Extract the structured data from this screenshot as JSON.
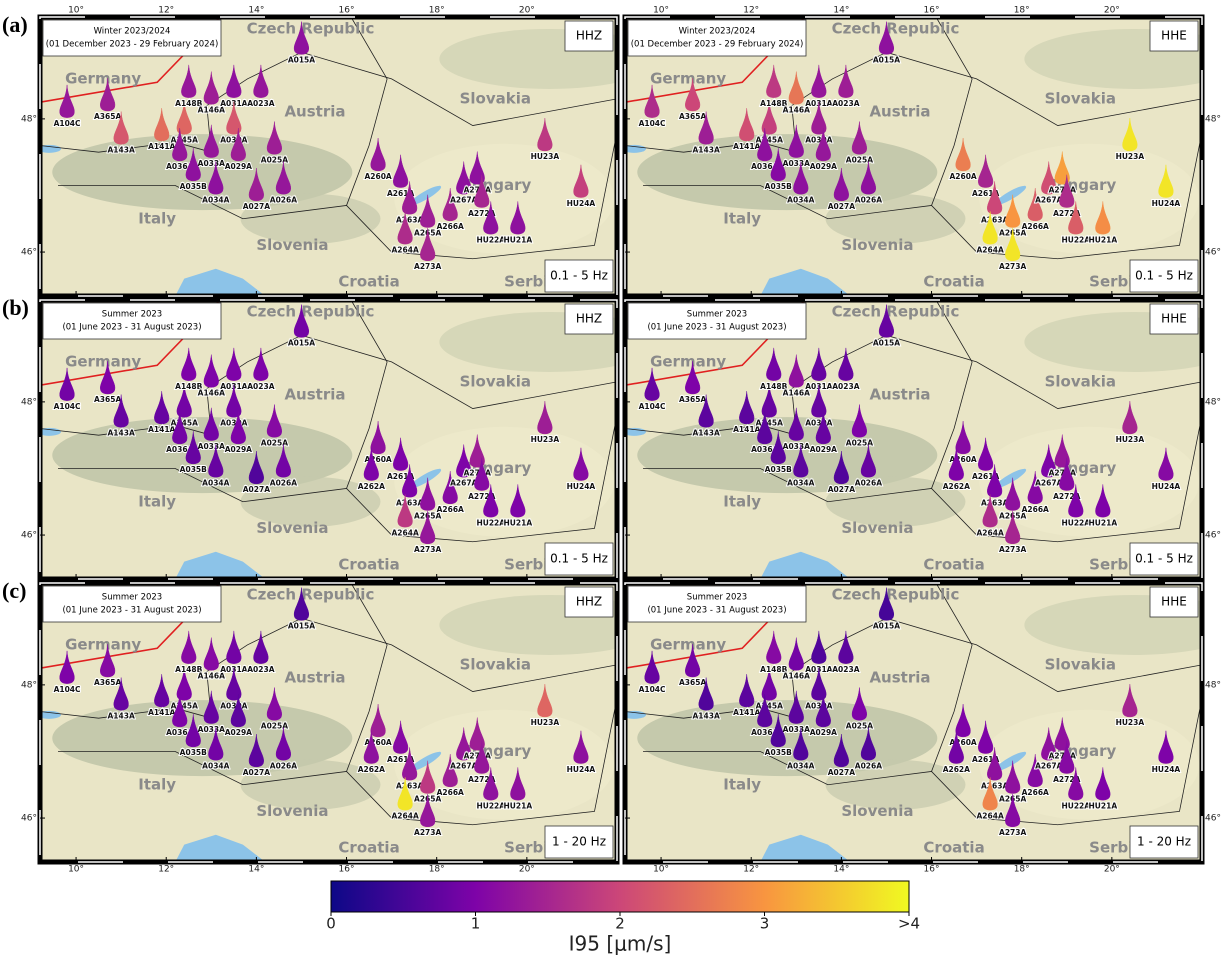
{
  "chart_data": {
    "type": "violin-map",
    "xlim": [
      9.2,
      22.0
    ],
    "ylim": [
      45.34,
      49.53
    ],
    "xticks": [
      {
        "value": 10,
        "label": "10°"
      },
      {
        "value": 12,
        "label": "12°"
      },
      {
        "value": 14,
        "label": "14°"
      },
      {
        "value": 16,
        "label": "16°"
      },
      {
        "value": 18,
        "label": "18°"
      },
      {
        "value": 20,
        "label": "20°"
      }
    ],
    "yticks": [
      {
        "value": 46,
        "label": "46°"
      },
      {
        "value": 48,
        "label": "48°"
      }
    ],
    "countries": [
      "Germany",
      "Czech Republic",
      "Austria",
      "Slovakia",
      "Hungary",
      "Italy",
      "Slovenia",
      "Croatia",
      "Serbia"
    ],
    "stations": [
      {
        "name": "A104C",
        "lon": 9.8,
        "lat": 48.0
      },
      {
        "name": "A365A",
        "lon": 10.7,
        "lat": 48.1
      },
      {
        "name": "A143A",
        "lon": 11.0,
        "lat": 47.6
      },
      {
        "name": "A141A",
        "lon": 11.9,
        "lat": 47.65
      },
      {
        "name": "A145A",
        "lon": 12.4,
        "lat": 47.75
      },
      {
        "name": "A148B",
        "lon": 12.5,
        "lat": 48.3
      },
      {
        "name": "A146A",
        "lon": 13.0,
        "lat": 48.2
      },
      {
        "name": "A031A",
        "lon": 13.5,
        "lat": 48.3
      },
      {
        "name": "A023A",
        "lon": 14.1,
        "lat": 48.3
      },
      {
        "name": "A030A",
        "lon": 13.5,
        "lat": 47.75
      },
      {
        "name": "A036A",
        "lon": 12.3,
        "lat": 47.35
      },
      {
        "name": "A033A",
        "lon": 13.0,
        "lat": 47.4
      },
      {
        "name": "A029A",
        "lon": 13.6,
        "lat": 47.35
      },
      {
        "name": "A025A",
        "lon": 14.4,
        "lat": 47.45
      },
      {
        "name": "A035B",
        "lon": 12.6,
        "lat": 47.05
      },
      {
        "name": "A034A",
        "lon": 13.1,
        "lat": 46.85
      },
      {
        "name": "A027A",
        "lon": 14.0,
        "lat": 46.75
      },
      {
        "name": "A026A",
        "lon": 14.6,
        "lat": 46.85
      },
      {
        "name": "A015A",
        "lon": 15.0,
        "lat": 48.95
      },
      {
        "name": "A260A",
        "lon": 16.7,
        "lat": 47.2
      },
      {
        "name": "A262A",
        "lon": 16.55,
        "lat": 46.8
      },
      {
        "name": "A261A",
        "lon": 17.2,
        "lat": 46.95
      },
      {
        "name": "A263A",
        "lon": 17.4,
        "lat": 46.55
      },
      {
        "name": "A264A",
        "lon": 17.3,
        "lat": 46.1
      },
      {
        "name": "A265A",
        "lon": 17.8,
        "lat": 46.35
      },
      {
        "name": "A273A",
        "lon": 17.8,
        "lat": 45.85
      },
      {
        "name": "A266A",
        "lon": 18.3,
        "lat": 46.45
      },
      {
        "name": "A267A",
        "lon": 18.6,
        "lat": 46.85
      },
      {
        "name": "A271A",
        "lon": 18.9,
        "lat": 47.0
      },
      {
        "name": "A272A",
        "lon": 19.0,
        "lat": 46.65
      },
      {
        "name": "HU22A",
        "lon": 19.2,
        "lat": 46.25
      },
      {
        "name": "HU21A",
        "lon": 19.8,
        "lat": 46.25
      },
      {
        "name": "HU23A",
        "lon": 20.4,
        "lat": 47.5
      },
      {
        "name": "HU24A",
        "lon": 21.2,
        "lat": 46.8
      }
    ],
    "panels": [
      {
        "label": "(a)",
        "title": "Winter 2023/2024",
        "period": "(01 December 2023 -  29 February 2024)",
        "component": "HHZ",
        "band": "0.1 - 5 Hz",
        "values": [
          1.3,
          1.4,
          2.2,
          2.5,
          2.4,
          1.3,
          1.4,
          1.2,
          1.3,
          2.2,
          1.3,
          1.3,
          1.4,
          1.4,
          1.2,
          1.2,
          1.4,
          1.3,
          1.2,
          1.3,
          null,
          1.2,
          1.4,
          1.6,
          1.4,
          1.5,
          1.5,
          1.2,
          1.2,
          1.5,
          1.2,
          1.2,
          1.8,
          1.9
        ]
      },
      {
        "title": "Winter 2023/2024",
        "period": "(01 December 2023 -  29 February 2024)",
        "component": "HHE",
        "band": "0.1 - 5 Hz",
        "values": [
          1.6,
          2.0,
          1.4,
          2.1,
          1.9,
          1.8,
          2.6,
          1.3,
          1.4,
          1.4,
          1.2,
          1.2,
          1.3,
          1.4,
          1.1,
          1.2,
          1.2,
          1.2,
          1.2,
          2.7,
          null,
          1.5,
          2.0,
          3.8,
          3.0,
          3.8,
          2.3,
          2.1,
          3.1,
          1.6,
          2.3,
          2.9,
          3.8,
          3.8
        ]
      },
      {
        "label": "(b)",
        "title": "Summer 2023",
        "period": "(01 June 2023 - 31 August 2023)",
        "component": "HHZ",
        "band": "0.1 - 5 Hz",
        "values": [
          0.9,
          1.0,
          0.8,
          0.8,
          0.9,
          1.0,
          1.0,
          1.0,
          1.0,
          0.9,
          0.9,
          0.9,
          1.0,
          1.1,
          0.8,
          0.8,
          0.6,
          0.9,
          0.9,
          1.2,
          1.0,
          1.0,
          1.0,
          1.8,
          1.2,
          1.3,
          1.1,
          1.0,
          1.4,
          1.1,
          1.0,
          1.0,
          1.4,
          1.1
        ]
      },
      {
        "title": "Summer 2023",
        "period": "(01 June 2023 - 31 August 2023)",
        "component": "HHE",
        "band": "0.1 - 5 Hz",
        "values": [
          0.8,
          1.0,
          0.7,
          0.7,
          0.8,
          0.9,
          1.2,
          0.8,
          0.8,
          0.8,
          0.7,
          0.8,
          0.8,
          1.0,
          0.7,
          0.7,
          0.6,
          0.8,
          0.8,
          1.1,
          1.0,
          1.0,
          1.0,
          1.6,
          1.2,
          1.5,
          1.1,
          1.0,
          1.3,
          1.1,
          1.0,
          1.0,
          1.5,
          1.1
        ]
      },
      {
        "label": "(c)",
        "title": "Summer 2023",
        "period": "(01 June 2023 - 31 August 2023)",
        "component": "HHZ",
        "band": "1 - 20 Hz",
        "values": [
          1.0,
          1.1,
          0.8,
          0.8,
          1.0,
          1.1,
          1.1,
          0.9,
          0.8,
          0.8,
          1.0,
          0.8,
          0.7,
          1.1,
          0.9,
          0.9,
          0.7,
          0.9,
          0.6,
          1.4,
          1.2,
          1.1,
          1.3,
          3.8,
          1.8,
          1.3,
          1.4,
          1.3,
          1.4,
          1.3,
          1.2,
          1.2,
          2.4,
          1.2
        ]
      },
      {
        "title": "Summer 2023",
        "period": "(01 June 2023 - 31 August 2023)",
        "component": "HHE",
        "band": "1 - 20 Hz",
        "values": [
          0.8,
          0.9,
          0.6,
          0.7,
          0.9,
          1.1,
          0.9,
          0.6,
          0.7,
          0.7,
          0.7,
          0.7,
          0.7,
          1.0,
          0.6,
          0.6,
          0.6,
          0.6,
          0.5,
          1.0,
          0.9,
          1.0,
          1.2,
          2.8,
          1.2,
          1.1,
          1.1,
          1.2,
          1.2,
          1.1,
          1.1,
          1.0,
          1.5,
          1.0
        ]
      }
    ],
    "colorbar": {
      "label": "I95 [μm/s]",
      "colormap": [
        "#0d0887",
        "#7e03a8",
        "#cc4778",
        "#f89540",
        "#f0f921"
      ],
      "ticks": [
        0,
        1,
        2,
        3,
        {
          "value": 4,
          "label": ">4"
        }
      ]
    }
  }
}
